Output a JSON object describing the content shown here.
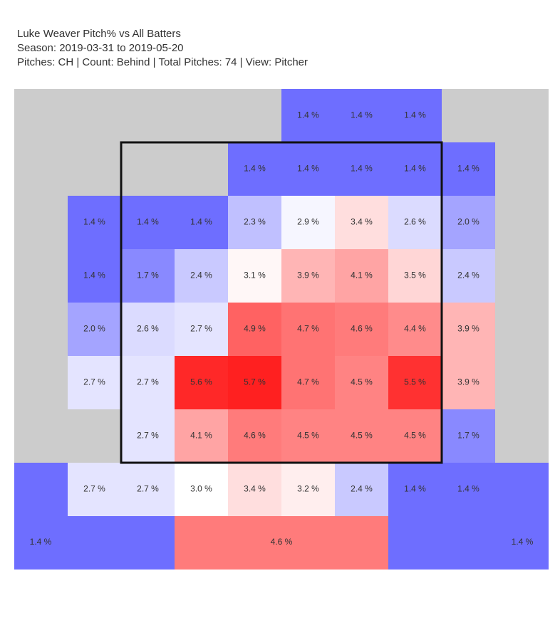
{
  "chart_data": {
    "type": "heatmap",
    "title_lines": [
      "Luke Weaver Pitch% vs All Batters",
      "Season: 2019-03-31 to 2019-05-20",
      "Pitches: CH | Count: Behind | Total Pitches: 74 | View: Pitcher"
    ],
    "pitcher": "Luke Weaver",
    "metric": "Pitch%",
    "opponent": "All Batters",
    "season": "2019-03-31 to 2019-05-20",
    "pitches": "CH",
    "count": "Behind",
    "total_pitches": 74,
    "view": "Pitcher",
    "value_suffix": " %",
    "color_scale": {
      "low": "#6e6eff",
      "mid": "#ffffff",
      "high": "#ff2020",
      "center_value": 3.0,
      "max_value": 5.7,
      "empty": "#cccccc"
    },
    "grid_rows": [
      [
        null,
        null,
        null,
        null,
        1.4,
        1.4,
        1.4,
        null,
        null
      ],
      [
        null,
        null,
        null,
        1.4,
        1.4,
        1.4,
        1.4,
        1.4,
        null
      ],
      [
        1.4,
        1.4,
        1.4,
        2.3,
        2.9,
        3.4,
        2.6,
        2.0,
        null
      ],
      [
        1.4,
        1.7,
        2.4,
        3.1,
        3.9,
        4.1,
        3.5,
        2.4,
        null
      ],
      [
        2.0,
        2.6,
        2.7,
        4.9,
        4.7,
        4.6,
        4.4,
        3.9,
        null
      ],
      [
        2.7,
        2.7,
        5.6,
        5.7,
        4.7,
        4.5,
        5.5,
        3.9,
        null
      ],
      [
        null,
        2.7,
        4.1,
        4.6,
        4.5,
        4.5,
        4.5,
        1.7,
        null
      ],
      [
        2.7,
        2.7,
        3.0,
        3.4,
        3.2,
        2.4,
        1.4,
        1.4,
        null
      ]
    ],
    "outer_zones": [
      {
        "zone": "left",
        "value": 1.4
      },
      {
        "zone": "bottom",
        "value": 4.6
      },
      {
        "zone": "right",
        "value": 1.4
      }
    ],
    "strike_zone": {
      "row_start": 1,
      "row_end": 6,
      "col_start": 1,
      "col_end": 6
    }
  }
}
